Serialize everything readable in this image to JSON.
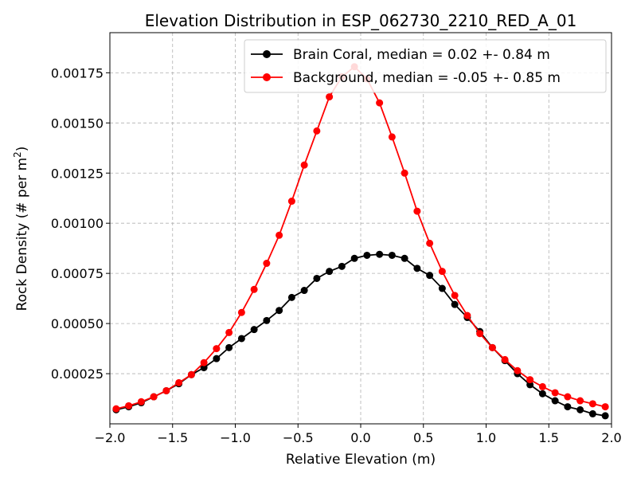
{
  "chart_data": {
    "type": "line",
    "title": "Elevation Distribution in ESP_062730_2210_RED_A_01",
    "xlabel": "Relative Elevation (m)",
    "ylabel_main": "Rock Density (# per m",
    "ylabel_sup": "2",
    "ylabel_end": ")",
    "xlim": [
      -2.0,
      2.0
    ],
    "ylim": [
      0.0,
      0.00195
    ],
    "grid": true,
    "legend_position": "top-right",
    "x_ticks": [
      -2.0,
      -1.5,
      -1.0,
      -0.5,
      0.0,
      0.5,
      1.0,
      1.5,
      2.0
    ],
    "x_tick_labels": [
      "−2.0",
      "−1.5",
      "−1.0",
      "−0.5",
      "0.0",
      "0.5",
      "1.0",
      "1.5",
      "2.0"
    ],
    "y_ticks": [
      0.00025,
      0.0005,
      0.00075,
      0.001,
      0.00125,
      0.0015,
      0.00175
    ],
    "y_tick_labels": [
      "0.00025",
      "0.00050",
      "0.00075",
      "0.00100",
      "0.00125",
      "0.00150",
      "0.00175"
    ],
    "x": [
      -1.95,
      -1.85,
      -1.75,
      -1.65,
      -1.55,
      -1.45,
      -1.35,
      -1.25,
      -1.15,
      -1.05,
      -0.95,
      -0.85,
      -0.75,
      -0.65,
      -0.55,
      -0.45,
      -0.35,
      -0.25,
      -0.15,
      -0.05,
      0.05,
      0.15,
      0.25,
      0.35,
      0.45,
      0.55,
      0.65,
      0.75,
      0.85,
      0.95,
      1.05,
      1.15,
      1.25,
      1.35,
      1.45,
      1.55,
      1.65,
      1.75,
      1.85,
      1.95
    ],
    "series": [
      {
        "name": "Brain Coral, median = 0.02 +- 0.84 m",
        "color": "#000000",
        "values": [
          7e-05,
          8.5e-05,
          0.000105,
          0.000135,
          0.000165,
          0.0002,
          0.000245,
          0.00028,
          0.000325,
          0.00038,
          0.000425,
          0.00047,
          0.000515,
          0.000565,
          0.00063,
          0.000665,
          0.000725,
          0.00076,
          0.000785,
          0.000825,
          0.00084,
          0.000845,
          0.00084,
          0.000825,
          0.000775,
          0.00074,
          0.000675,
          0.000595,
          0.00053,
          0.00046,
          0.00038,
          0.000315,
          0.00025,
          0.000195,
          0.00015,
          0.000115,
          8.5e-05,
          7e-05,
          5e-05,
          4e-05
        ]
      },
      {
        "name": "Background, median = -0.05 +- 0.85 m",
        "color": "#ff0000",
        "values": [
          7.5e-05,
          9e-05,
          0.00011,
          0.000135,
          0.000165,
          0.000205,
          0.000245,
          0.000305,
          0.000375,
          0.000455,
          0.000555,
          0.00067,
          0.0008,
          0.00094,
          0.00111,
          0.00129,
          0.00146,
          0.00163,
          0.00173,
          0.00178,
          0.00172,
          0.0016,
          0.00143,
          0.00125,
          0.00106,
          0.0009,
          0.00076,
          0.00064,
          0.00054,
          0.00045,
          0.00038,
          0.00032,
          0.000265,
          0.00022,
          0.000185,
          0.000155,
          0.000135,
          0.000115,
          0.0001,
          8.5e-05
        ]
      }
    ]
  }
}
